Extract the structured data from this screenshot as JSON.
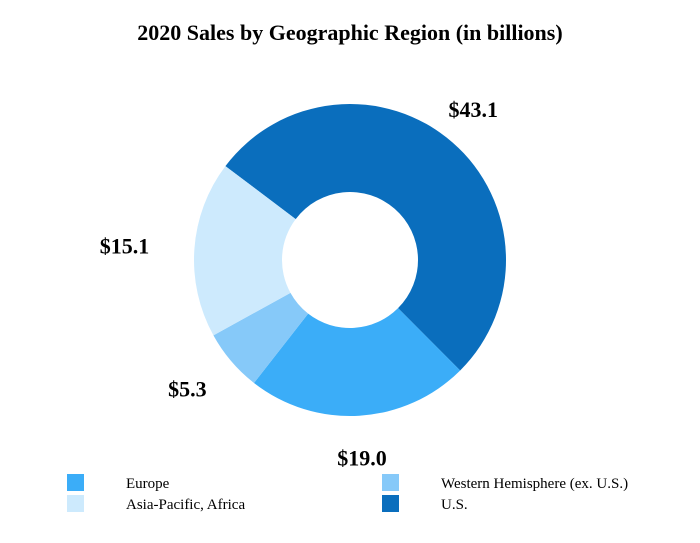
{
  "chart_data": {
    "type": "pie",
    "style": "donut",
    "title": "2020 Sales by Geographic Region (in billions)",
    "categories": [
      "U.S.",
      "Europe",
      "Western Hemisphere (ex. U.S.)",
      "Asia-Pacific, Africa"
    ],
    "values": [
      43.1,
      19.0,
      5.3,
      15.1
    ],
    "value_labels": [
      "$43.1",
      "$19.0",
      "$5.3",
      "$15.1"
    ],
    "colors": [
      "#0a6ebd",
      "#3badf8",
      "#86c9f9",
      "#cdeafd"
    ],
    "legend": {
      "placement": "bottom",
      "entries": [
        {
          "label": "Europe",
          "color": "#3badf8"
        },
        {
          "label": "Western Hemisphere (ex. U.S.)",
          "color": "#86c9f9"
        },
        {
          "label": "Asia-Pacific, Africa",
          "color": "#cdeafd"
        },
        {
          "label": "U.S.",
          "color": "#0a6ebd"
        }
      ]
    }
  }
}
